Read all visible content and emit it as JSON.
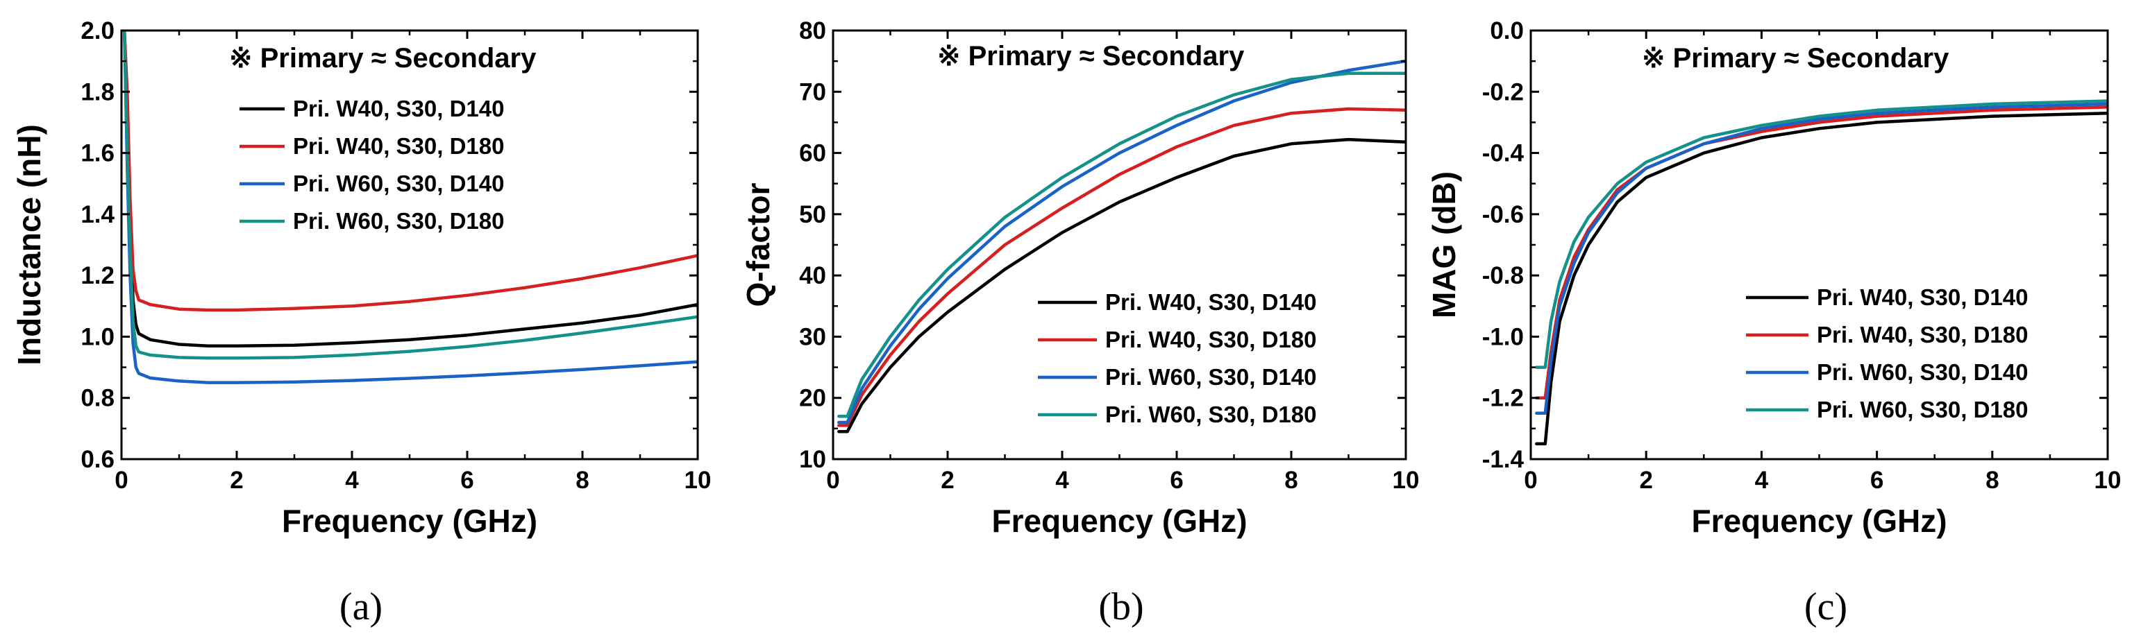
{
  "colors": {
    "pri_w40_d140": "#000000",
    "pri_w40_d180": "#d62020",
    "pri_w60_d140": "#1a62c6",
    "pri_w60_d180": "#14918a"
  },
  "chart_data": [
    {
      "type": "line",
      "id": "a",
      "panel_label": "(a)",
      "note": "※ Primary ≈ Secondary",
      "xlabel": "Frequency (GHz)",
      "ylabel": "Inductance (nH)",
      "xlim": [
        0,
        10
      ],
      "ylim": [
        0.6,
        2.0
      ],
      "xticks": [
        0,
        2,
        4,
        6,
        8,
        10
      ],
      "xtick_labels": [
        "0",
        "2",
        "4",
        "6",
        "8",
        "10"
      ],
      "yticks": [
        0.6,
        0.8,
        1.0,
        1.2,
        1.4,
        1.6,
        1.8,
        2.0
      ],
      "ytick_labels": [
        "0.6",
        "0.8",
        "1.0",
        "1.2",
        "1.4",
        "1.6",
        "1.8",
        "2.0"
      ],
      "legend_position": "top-left",
      "series": [
        {
          "name": "Pri. W40, S30, D140",
          "color_key": "pri_w40_d140",
          "x": [
            0.05,
            0.1,
            0.15,
            0.2,
            0.25,
            0.3,
            0.5,
            1,
            1.5,
            2,
            3,
            4,
            5,
            6,
            7,
            8,
            9,
            10
          ],
          "y": [
            2.0,
            1.7,
            1.35,
            1.12,
            1.04,
            1.01,
            0.99,
            0.975,
            0.97,
            0.97,
            0.972,
            0.98,
            0.99,
            1.005,
            1.025,
            1.045,
            1.07,
            1.105
          ]
        },
        {
          "name": "Pri. W40, S30, D180",
          "color_key": "pri_w40_d180",
          "x": [
            0.05,
            0.1,
            0.15,
            0.2,
            0.25,
            0.3,
            0.5,
            1,
            1.5,
            2,
            3,
            4,
            5,
            6,
            7,
            8,
            9,
            10
          ],
          "y": [
            2.0,
            1.8,
            1.45,
            1.22,
            1.15,
            1.12,
            1.105,
            1.09,
            1.087,
            1.087,
            1.092,
            1.1,
            1.115,
            1.135,
            1.16,
            1.19,
            1.225,
            1.265
          ]
        },
        {
          "name": "Pri. W60, S30, D140",
          "color_key": "pri_w60_d140",
          "x": [
            0.05,
            0.1,
            0.15,
            0.2,
            0.25,
            0.3,
            0.5,
            1,
            1.5,
            2,
            3,
            4,
            5,
            6,
            7,
            8,
            9,
            10
          ],
          "y": [
            2.0,
            1.55,
            1.2,
            0.98,
            0.9,
            0.88,
            0.865,
            0.855,
            0.85,
            0.85,
            0.852,
            0.857,
            0.864,
            0.872,
            0.882,
            0.893,
            0.905,
            0.918
          ]
        },
        {
          "name": "Pri. W60, S30, D180",
          "color_key": "pri_w60_d180",
          "x": [
            0.05,
            0.1,
            0.15,
            0.2,
            0.25,
            0.3,
            0.5,
            1,
            1.5,
            2,
            3,
            4,
            5,
            6,
            7,
            8,
            9,
            10
          ],
          "y": [
            2.0,
            1.6,
            1.28,
            1.05,
            0.97,
            0.95,
            0.94,
            0.932,
            0.93,
            0.93,
            0.932,
            0.94,
            0.952,
            0.968,
            0.988,
            1.012,
            1.038,
            1.065
          ]
        }
      ]
    },
    {
      "type": "line",
      "id": "b",
      "panel_label": "(b)",
      "note": "※ Primary ≈ Secondary",
      "xlabel": "Frequency (GHz)",
      "ylabel": "Q-factor",
      "xlim": [
        0,
        10
      ],
      "ylim": [
        10,
        80
      ],
      "xticks": [
        0,
        2,
        4,
        6,
        8,
        10
      ],
      "xtick_labels": [
        "0",
        "2",
        "4",
        "6",
        "8",
        "10"
      ],
      "yticks": [
        10,
        20,
        30,
        40,
        50,
        60,
        70,
        80
      ],
      "ytick_labels": [
        "10",
        "20",
        "30",
        "40",
        "50",
        "60",
        "70",
        "80"
      ],
      "legend_position": "bottom-right",
      "series": [
        {
          "name": "Pri. W40, S30, D140",
          "color_key": "pri_w40_d140",
          "x": [
            0.1,
            0.25,
            0.5,
            1,
            1.5,
            2,
            3,
            4,
            5,
            6,
            7,
            8,
            9,
            10
          ],
          "y": [
            14.5,
            14.5,
            19,
            25,
            30,
            34,
            41,
            47,
            52,
            56,
            59.5,
            61.5,
            62.2,
            61.8
          ]
        },
        {
          "name": "Pri. W40, S30, D180",
          "color_key": "pri_w40_d180",
          "x": [
            0.1,
            0.25,
            0.5,
            1,
            1.5,
            2,
            3,
            4,
            5,
            6,
            7,
            8,
            9,
            10
          ],
          "y": [
            15.5,
            15.5,
            20.5,
            27,
            32.5,
            37,
            45,
            51,
            56.5,
            61,
            64.5,
            66.5,
            67.2,
            67
          ]
        },
        {
          "name": "Pri. W60, S30, D140",
          "color_key": "pri_w60_d140",
          "x": [
            0.1,
            0.25,
            0.5,
            1,
            1.5,
            2,
            3,
            4,
            5,
            6,
            7,
            8,
            9,
            10
          ],
          "y": [
            16,
            16,
            21.5,
            28.5,
            34.5,
            39.5,
            48,
            54.5,
            60,
            64.5,
            68.5,
            71.5,
            73.5,
            75
          ]
        },
        {
          "name": "Pri. W60, S30, D180",
          "color_key": "pri_w60_d180",
          "x": [
            0.1,
            0.25,
            0.5,
            1,
            1.5,
            2,
            3,
            4,
            5,
            6,
            7,
            8,
            9,
            10
          ],
          "y": [
            17,
            17,
            23,
            30,
            36,
            41,
            49.5,
            56,
            61.5,
            66,
            69.5,
            72,
            73,
            73
          ]
        }
      ]
    },
    {
      "type": "line",
      "id": "c",
      "panel_label": "(c)",
      "note": "※ Primary ≈ Secondary",
      "xlabel": "Frequency (GHz)",
      "ylabel": "MAG (dB)",
      "xlim": [
        0,
        10
      ],
      "ylim": [
        -1.4,
        0.0
      ],
      "xticks": [
        0,
        2,
        4,
        6,
        8,
        10
      ],
      "xtick_labels": [
        "0",
        "2",
        "4",
        "6",
        "8",
        "10"
      ],
      "yticks": [
        -1.4,
        -1.2,
        -1.0,
        -0.8,
        -0.6,
        -0.4,
        -0.2,
        0.0
      ],
      "ytick_labels": [
        "-1.4",
        "-1.2",
        "-1.0",
        "-0.8",
        "-0.6",
        "-0.4",
        "-0.2",
        "0.0"
      ],
      "legend_position": "bottom-right",
      "series": [
        {
          "name": "Pri. W40, S30, D140",
          "color_key": "pri_w40_d140",
          "x": [
            0.1,
            0.25,
            0.35,
            0.5,
            0.75,
            1,
            1.5,
            2,
            3,
            4,
            5,
            6,
            7,
            8,
            9,
            10
          ],
          "y": [
            -1.35,
            -1.35,
            -1.15,
            -0.95,
            -0.8,
            -0.7,
            -0.56,
            -0.48,
            -0.4,
            -0.35,
            -0.32,
            -0.3,
            -0.29,
            -0.28,
            -0.275,
            -0.27
          ]
        },
        {
          "name": "Pri. W40, S30, D180",
          "color_key": "pri_w40_d180",
          "x": [
            0.1,
            0.25,
            0.35,
            0.5,
            0.75,
            1,
            1.5,
            2,
            3,
            4,
            5,
            6,
            7,
            8,
            9,
            10
          ],
          "y": [
            -1.2,
            -1.2,
            -1.05,
            -0.88,
            -0.74,
            -0.65,
            -0.52,
            -0.45,
            -0.37,
            -0.33,
            -0.3,
            -0.28,
            -0.27,
            -0.26,
            -0.255,
            -0.25
          ]
        },
        {
          "name": "Pri. W60, S30, D140",
          "color_key": "pri_w60_d140",
          "x": [
            0.1,
            0.25,
            0.35,
            0.5,
            0.75,
            1,
            1.5,
            2,
            3,
            4,
            5,
            6,
            7,
            8,
            9,
            10
          ],
          "y": [
            -1.25,
            -1.25,
            -1.08,
            -0.9,
            -0.76,
            -0.66,
            -0.53,
            -0.45,
            -0.37,
            -0.32,
            -0.29,
            -0.27,
            -0.26,
            -0.25,
            -0.245,
            -0.24
          ]
        },
        {
          "name": "Pri. W60, S30, D180",
          "color_key": "pri_w60_d180",
          "x": [
            0.1,
            0.25,
            0.35,
            0.5,
            0.75,
            1,
            1.5,
            2,
            3,
            4,
            5,
            6,
            7,
            8,
            9,
            10
          ],
          "y": [
            -1.1,
            -1.1,
            -0.95,
            -0.82,
            -0.69,
            -0.61,
            -0.5,
            -0.43,
            -0.35,
            -0.31,
            -0.28,
            -0.26,
            -0.25,
            -0.24,
            -0.235,
            -0.23
          ]
        }
      ]
    }
  ]
}
